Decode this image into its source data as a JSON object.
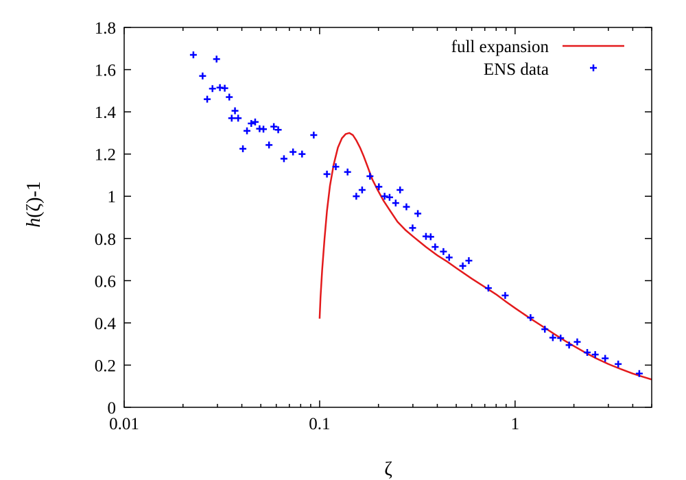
{
  "chart_data": {
    "type": "scatter",
    "xscale": "log",
    "xlim": [
      0.01,
      5
    ],
    "ylim": [
      0,
      1.8
    ],
    "grid": false,
    "legend_position": "top-right",
    "xlabel": "ζ",
    "ylabel": "h(ζ)-1",
    "ylabel_italic_part": "h",
    "ylabel_rest": "(ζ)-1",
    "x_ticks": [
      0.01,
      0.1,
      1
    ],
    "x_tick_labels": [
      "0.01",
      "0.1",
      "1"
    ],
    "y_ticks": [
      0,
      0.2,
      0.4,
      0.6,
      0.8,
      1,
      1.2,
      1.4,
      1.6,
      1.8
    ],
    "y_tick_labels": [
      "0",
      "0.2",
      "0.4",
      "0.6",
      "0.8",
      "1",
      "1.2",
      "1.4",
      "1.6",
      "1.8"
    ],
    "series": [
      {
        "name": "full expansion",
        "kind": "line",
        "color": "#e31a1c",
        "x": [
          0.1,
          0.101,
          0.103,
          0.106,
          0.109,
          0.113,
          0.118,
          0.124,
          0.13,
          0.136,
          0.142,
          0.148,
          0.154,
          0.161,
          0.168,
          0.176,
          0.186,
          0.198,
          0.212,
          0.23,
          0.25,
          0.275,
          0.3,
          0.35,
          0.4,
          0.45,
          0.5,
          0.6,
          0.7,
          0.8,
          0.9,
          1.0,
          1.2,
          1.4,
          1.6,
          1.8,
          2.0,
          2.3,
          2.6,
          3.0,
          3.5,
          4.0,
          4.5,
          5.0
        ],
        "y": [
          0.42,
          0.52,
          0.65,
          0.8,
          0.93,
          1.05,
          1.15,
          1.23,
          1.275,
          1.295,
          1.3,
          1.29,
          1.265,
          1.23,
          1.19,
          1.14,
          1.08,
          1.03,
          0.98,
          0.93,
          0.88,
          0.84,
          0.81,
          0.76,
          0.72,
          0.69,
          0.66,
          0.61,
          0.57,
          0.535,
          0.5,
          0.47,
          0.42,
          0.38,
          0.345,
          0.315,
          0.29,
          0.258,
          0.232,
          0.205,
          0.18,
          0.16,
          0.145,
          0.132
        ]
      },
      {
        "name": "ENS data",
        "kind": "points",
        "marker": "plus",
        "color": "#0000ff",
        "points": [
          [
            0.0226,
            1.67
          ],
          [
            0.0252,
            1.57
          ],
          [
            0.0266,
            1.46
          ],
          [
            0.0283,
            1.51
          ],
          [
            0.0297,
            1.65
          ],
          [
            0.0309,
            1.515
          ],
          [
            0.0327,
            1.512
          ],
          [
            0.0345,
            1.47
          ],
          [
            0.0355,
            1.37
          ],
          [
            0.0369,
            1.405
          ],
          [
            0.0383,
            1.37
          ],
          [
            0.0405,
            1.225
          ],
          [
            0.0425,
            1.31
          ],
          [
            0.0447,
            1.345
          ],
          [
            0.0468,
            1.352
          ],
          [
            0.0493,
            1.32
          ],
          [
            0.0516,
            1.318
          ],
          [
            0.0551,
            1.243
          ],
          [
            0.0583,
            1.33
          ],
          [
            0.0614,
            1.315
          ],
          [
            0.0657,
            1.178
          ],
          [
            0.0731,
            1.21
          ],
          [
            0.0813,
            1.2
          ],
          [
            0.0933,
            1.29
          ],
          [
            0.109,
            1.105
          ],
          [
            0.121,
            1.14
          ],
          [
            0.139,
            1.115
          ],
          [
            0.154,
            1.0
          ],
          [
            0.165,
            1.03
          ],
          [
            0.181,
            1.095
          ],
          [
            0.201,
            1.045
          ],
          [
            0.215,
            1.0
          ],
          [
            0.228,
            0.995
          ],
          [
            0.245,
            0.968
          ],
          [
            0.258,
            1.03
          ],
          [
            0.278,
            0.95
          ],
          [
            0.299,
            0.85
          ],
          [
            0.318,
            0.918
          ],
          [
            0.35,
            0.81
          ],
          [
            0.37,
            0.808
          ],
          [
            0.39,
            0.76
          ],
          [
            0.43,
            0.738
          ],
          [
            0.46,
            0.71
          ],
          [
            0.54,
            0.67
          ],
          [
            0.58,
            0.695
          ],
          [
            0.73,
            0.565
          ],
          [
            0.89,
            0.53
          ],
          [
            1.2,
            0.425
          ],
          [
            1.42,
            0.37
          ],
          [
            1.56,
            0.33
          ],
          [
            1.71,
            0.328
          ],
          [
            1.89,
            0.295
          ],
          [
            2.08,
            0.31
          ],
          [
            2.34,
            0.26
          ],
          [
            2.57,
            0.25
          ],
          [
            2.89,
            0.232
          ],
          [
            3.37,
            0.205
          ],
          [
            4.32,
            0.16
          ]
        ]
      }
    ]
  }
}
